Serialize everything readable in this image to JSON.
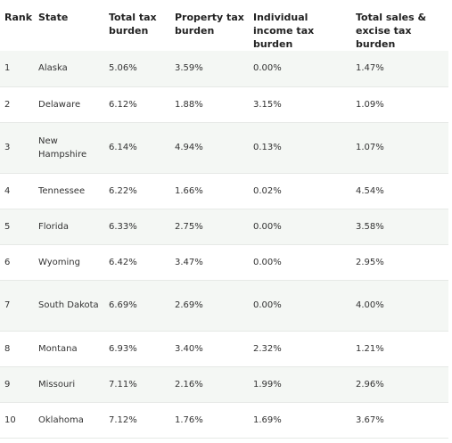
{
  "table": {
    "headers": {
      "rank": "Rank",
      "state": "State",
      "total": "Total tax burden",
      "property": "Property tax burden",
      "income": "Individual income tax burden",
      "sales": "Total sales & excise tax burden"
    },
    "rows": [
      {
        "rank": "1",
        "state": "Alaska",
        "total": "5.06%",
        "property": "3.59%",
        "income": "0.00%",
        "sales": "1.47%"
      },
      {
        "rank": "2",
        "state": "Delaware",
        "total": "6.12%",
        "property": "1.88%",
        "income": "3.15%",
        "sales": "1.09%"
      },
      {
        "rank": "3",
        "state": "New Hampshire",
        "total": "6.14%",
        "property": "4.94%",
        "income": "0.13%",
        "sales": "1.07%"
      },
      {
        "rank": "4",
        "state": "Tennessee",
        "total": "6.22%",
        "property": "1.66%",
        "income": "0.02%",
        "sales": "4.54%"
      },
      {
        "rank": "5",
        "state": "Florida",
        "total": "6.33%",
        "property": "2.75%",
        "income": "0.00%",
        "sales": "3.58%"
      },
      {
        "rank": "6",
        "state": "Wyoming",
        "total": "6.42%",
        "property": "3.47%",
        "income": "0.00%",
        "sales": "2.95%"
      },
      {
        "rank": "7",
        "state": "South Dakota",
        "total": "6.69%",
        "property": "2.69%",
        "income": "0.00%",
        "sales": "4.00%"
      },
      {
        "rank": "8",
        "state": "Montana",
        "total": "6.93%",
        "property": "3.40%",
        "income": "2.32%",
        "sales": "1.21%"
      },
      {
        "rank": "9",
        "state": "Missouri",
        "total": "7.11%",
        "property": "2.16%",
        "income": "1.99%",
        "sales": "2.96%"
      },
      {
        "rank": "10",
        "state": "Oklahoma",
        "total": "7.12%",
        "property": "1.76%",
        "income": "1.69%",
        "sales": "3.67%"
      }
    ]
  },
  "colors": {
    "stripe": "#f4f7f4",
    "border": "#e6e9e6",
    "text": "#333333",
    "header_text": "#222222"
  }
}
